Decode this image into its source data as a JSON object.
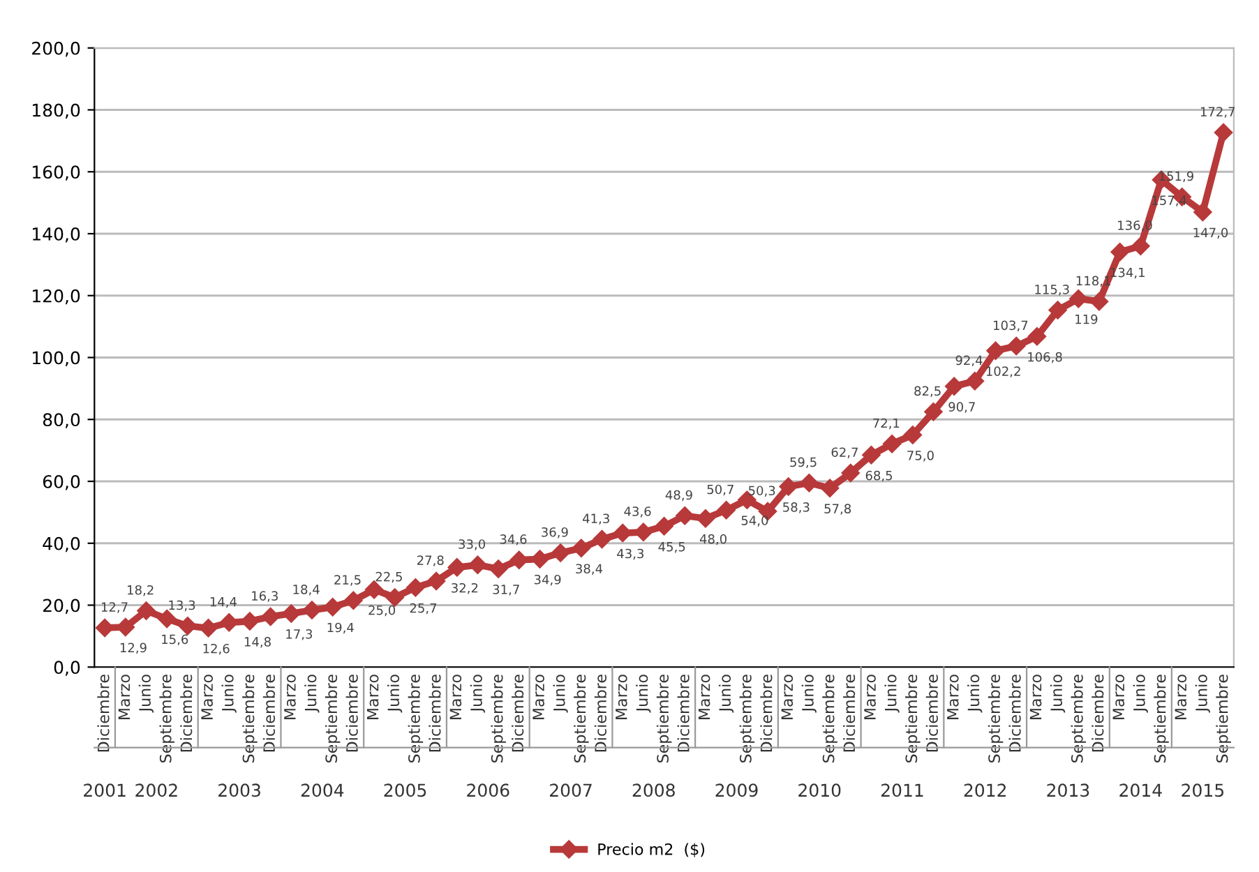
{
  "chart_data": {
    "type": "line",
    "categories": [
      "Diciembre",
      "Marzo",
      "Junio",
      "Septiembre",
      "Diciembre",
      "Marzo",
      "Junio",
      "Septiembre",
      "Diciembre",
      "Marzo",
      "Junio",
      "Septiembre",
      "Diciembre",
      "Marzo",
      "Junio",
      "Septiembre",
      "Diciembre",
      "Marzo",
      "Junio",
      "Septiembre",
      "Diciembre",
      "Marzo",
      "Junio",
      "Septiembre",
      "Diciembre",
      "Marzo",
      "Junio",
      "Septiembre",
      "Diciembre",
      "Marzo",
      "Junio",
      "Septiembre",
      "Diciembre",
      "Marzo",
      "Junio",
      "Septiembre",
      "Diciembre",
      "Marzo",
      "Junio",
      "Septiembre",
      "Diciembre",
      "Marzo",
      "Junio",
      "Septiembre",
      "Diciembre",
      "Marzo",
      "Junio",
      "Septiembre",
      "Diciembre",
      "Marzo",
      "Junio",
      "Septiembre",
      "Marzo",
      "Junio",
      "Septiembre"
    ],
    "series": [
      {
        "name": "Precio m2  ($)",
        "color": "#b8393a",
        "values": [
          12.7,
          12.9,
          18.2,
          15.6,
          13.3,
          12.6,
          14.4,
          14.8,
          16.3,
          17.3,
          18.4,
          19.4,
          21.5,
          25.0,
          22.5,
          25.7,
          27.8,
          32.2,
          33.0,
          31.7,
          34.6,
          34.9,
          36.9,
          38.4,
          41.3,
          43.3,
          43.6,
          45.5,
          48.9,
          48.0,
          50.7,
          54.0,
          50.3,
          58.3,
          59.5,
          57.8,
          62.7,
          68.5,
          72.1,
          75.0,
          82.5,
          90.7,
          92.4,
          102.2,
          103.7,
          106.8,
          115.3,
          119.0,
          118.1,
          134.1,
          136.0,
          157.4,
          151.9,
          147.0,
          172.7
        ],
        "value_labels": [
          "12,7",
          "12,9",
          "18,2",
          "15,6",
          "13,3",
          "12,6",
          "14,4",
          "14,8",
          "16,3",
          "17,3",
          "18,4",
          "19,4",
          "21,5",
          "25,0",
          "22,5",
          "25,7",
          "27,8",
          "32,2",
          "33,0",
          "31,7",
          "34,6",
          "34,9",
          "36,9",
          "38,4",
          "41,3",
          "43,3",
          "43,6",
          "45,5",
          "48,9",
          "48,0",
          "50,7",
          "54,0",
          "50,3",
          "58,3",
          "59,5",
          "57,8",
          "62,7",
          "68,5",
          "72,1",
          "75,0",
          "82,5",
          "90,7",
          "92,4",
          "102,2",
          "103,7",
          "106,8",
          "115,3",
          "119",
          "118,1",
          "134,1",
          "136,0",
          "157,4",
          "151,9",
          "147,0",
          "172,7"
        ]
      }
    ],
    "ylim": [
      0,
      200
    ],
    "yticks": [
      {
        "value": 0,
        "label": "0,0"
      },
      {
        "value": 20,
        "label": "20,0"
      },
      {
        "value": 40,
        "label": "40,0"
      },
      {
        "value": 60,
        "label": "60,0"
      },
      {
        "value": 80,
        "label": "80,0"
      },
      {
        "value": 100,
        "label": "100,0"
      },
      {
        "value": 120,
        "label": "120,0"
      },
      {
        "value": 140,
        "label": "140,0"
      },
      {
        "value": 160,
        "label": "160,0"
      },
      {
        "value": 180,
        "label": "180,0"
      },
      {
        "value": 200,
        "label": "200,0"
      }
    ],
    "annotations": [
      "2001",
      "2002",
      "2003",
      "2004",
      "2005",
      "2006",
      "2007",
      "2008",
      "2009",
      "2010",
      "2011",
      "2012",
      "2013",
      "2014",
      "2015"
    ],
    "grid": "y",
    "legend": "bottom",
    "marker": "diamond",
    "line_style": "solid"
  }
}
